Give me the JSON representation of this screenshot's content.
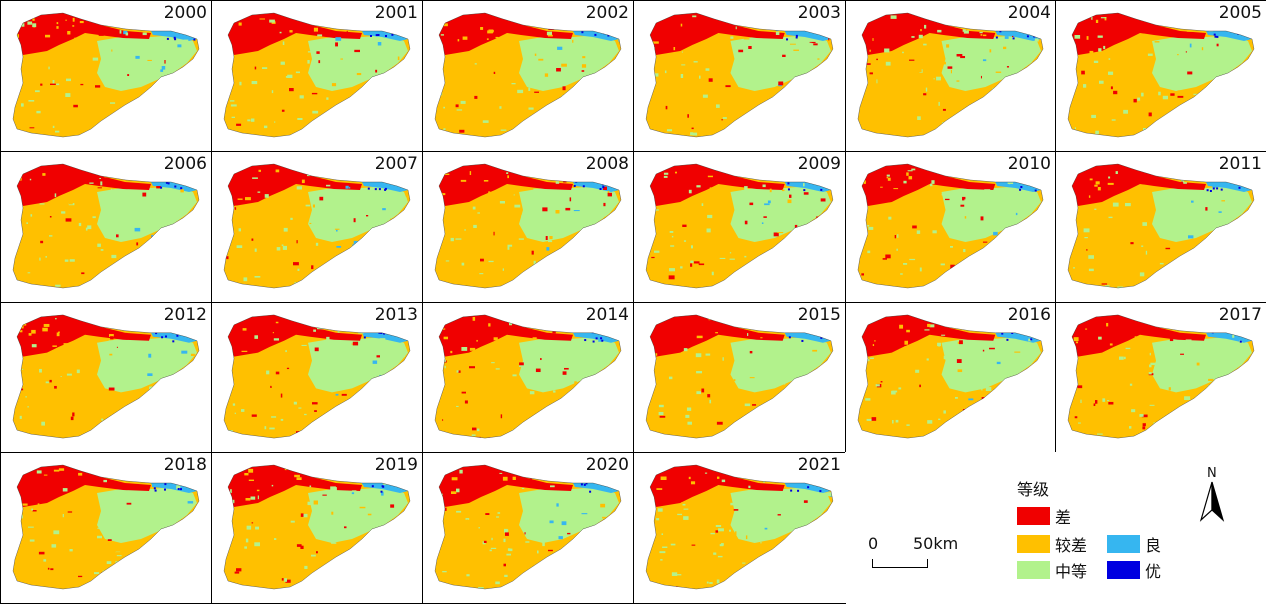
{
  "panels": [
    {
      "year": "2000"
    },
    {
      "year": "2001"
    },
    {
      "year": "2002"
    },
    {
      "year": "2003"
    },
    {
      "year": "2004"
    },
    {
      "year": "2005"
    },
    {
      "year": "2006"
    },
    {
      "year": "2007"
    },
    {
      "year": "2008"
    },
    {
      "year": "2009"
    },
    {
      "year": "2010"
    },
    {
      "year": "2011"
    },
    {
      "year": "2012"
    },
    {
      "year": "2013"
    },
    {
      "year": "2014"
    },
    {
      "year": "2015"
    },
    {
      "year": "2016"
    },
    {
      "year": "2017"
    },
    {
      "year": "2018"
    },
    {
      "year": "2019"
    },
    {
      "year": "2020"
    },
    {
      "year": "2021"
    }
  ],
  "legend": {
    "title": "等级",
    "items": [
      {
        "label": "差",
        "color": "#f00000"
      },
      {
        "label": "较差",
        "color": "#ffc000"
      },
      {
        "label": "中等",
        "color": "#b2f28c"
      },
      {
        "label": "良",
        "color": "#36b6f0"
      },
      {
        "label": "优",
        "color": "#0000e0"
      }
    ]
  },
  "scale_bar": {
    "start": "0",
    "end": "50km"
  },
  "north_arrow": {
    "label": "N"
  },
  "colors": {
    "border": "#000000",
    "background": "#ffffff"
  }
}
